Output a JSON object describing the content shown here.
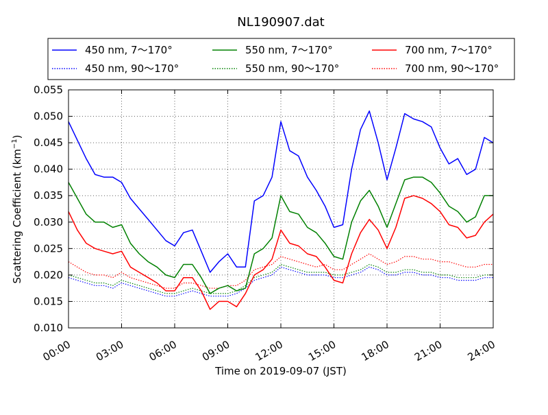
{
  "chart_data": {
    "type": "line",
    "title": "NL190907.dat",
    "xlabel": "Time on 2019-09-07 (JST)",
    "ylabel_main": "Scattering Coefficient (km",
    "ylabel_sup": "−1",
    "ylabel_close": ")",
    "xlim": [
      "00:00",
      "24:00"
    ],
    "ylim": [
      0.01,
      0.055
    ],
    "grid": true,
    "legend_position": "top",
    "x_ticks": [
      "00:00",
      "03:00",
      "06:00",
      "09:00",
      "12:00",
      "15:00",
      "18:00",
      "21:00",
      "24:00"
    ],
    "y_ticks": [
      "0.010",
      "0.015",
      "0.020",
      "0.025",
      "0.030",
      "0.035",
      "0.040",
      "0.045",
      "0.050",
      "0.055"
    ],
    "x_hours": [
      0,
      0.5,
      1,
      1.5,
      2,
      2.5,
      3,
      3.5,
      4,
      4.5,
      5,
      5.5,
      6,
      6.5,
      7,
      7.5,
      8,
      8.5,
      9,
      9.5,
      10,
      10.5,
      11,
      11.5,
      12,
      12.5,
      13,
      13.5,
      14,
      14.5,
      15,
      15.5,
      16,
      16.5,
      17,
      17.5,
      18,
      18.5,
      19,
      19.5,
      20,
      20.5,
      21,
      21.5,
      22,
      22.5,
      23,
      23.5,
      24
    ],
    "series": [
      {
        "name": "450 nm, 7～170°",
        "color": "#0000ff",
        "style": "solid",
        "values": [
          0.049,
          0.0455,
          0.042,
          0.039,
          0.0385,
          0.0385,
          0.0375,
          0.0345,
          0.0325,
          0.0305,
          0.0285,
          0.0265,
          0.0255,
          0.028,
          0.0285,
          0.0245,
          0.0205,
          0.0225,
          0.024,
          0.0215,
          0.0215,
          0.034,
          0.035,
          0.0385,
          0.049,
          0.0435,
          0.0425,
          0.0385,
          0.036,
          0.033,
          0.029,
          0.0295,
          0.04,
          0.0475,
          0.051,
          0.045,
          0.038,
          0.044,
          0.0505,
          0.0495,
          0.049,
          0.048,
          0.044,
          0.041,
          0.042,
          0.039,
          0.04,
          0.046,
          0.045
        ]
      },
      {
        "name": "550 nm, 7～170°",
        "color": "#008000",
        "style": "solid",
        "values": [
          0.0375,
          0.0345,
          0.0315,
          0.03,
          0.03,
          0.029,
          0.0295,
          0.026,
          0.024,
          0.0225,
          0.0215,
          0.02,
          0.0195,
          0.022,
          0.022,
          0.0195,
          0.0165,
          0.0175,
          0.018,
          0.017,
          0.0175,
          0.024,
          0.025,
          0.027,
          0.035,
          0.032,
          0.0315,
          0.029,
          0.028,
          0.026,
          0.0235,
          0.023,
          0.03,
          0.034,
          0.036,
          0.033,
          0.029,
          0.0335,
          0.038,
          0.0385,
          0.0385,
          0.0375,
          0.0355,
          0.033,
          0.032,
          0.03,
          0.031,
          0.035,
          0.035
        ]
      },
      {
        "name": "700 nm, 7～170°",
        "color": "#ff0000",
        "style": "solid",
        "values": [
          0.032,
          0.0285,
          0.026,
          0.025,
          0.0245,
          0.024,
          0.0245,
          0.0215,
          0.0205,
          0.0195,
          0.0185,
          0.017,
          0.017,
          0.0195,
          0.0195,
          0.017,
          0.0135,
          0.015,
          0.015,
          0.014,
          0.0165,
          0.02,
          0.021,
          0.023,
          0.0285,
          0.026,
          0.0255,
          0.024,
          0.0235,
          0.0215,
          0.019,
          0.0185,
          0.024,
          0.028,
          0.0305,
          0.0285,
          0.025,
          0.029,
          0.0345,
          0.035,
          0.0345,
          0.0335,
          0.032,
          0.0295,
          0.029,
          0.027,
          0.0275,
          0.03,
          0.0315
        ]
      },
      {
        "name": "450 nm, 90～170°",
        "color": "#0000ff",
        "style": "dotted",
        "values": [
          0.0195,
          0.019,
          0.0185,
          0.018,
          0.018,
          0.0175,
          0.0185,
          0.018,
          0.0175,
          0.017,
          0.0165,
          0.016,
          0.016,
          0.0165,
          0.017,
          0.0165,
          0.016,
          0.016,
          0.016,
          0.0165,
          0.0175,
          0.019,
          0.0195,
          0.02,
          0.0215,
          0.021,
          0.0205,
          0.02,
          0.02,
          0.02,
          0.0195,
          0.0195,
          0.02,
          0.0205,
          0.0215,
          0.021,
          0.02,
          0.02,
          0.0205,
          0.0205,
          0.02,
          0.02,
          0.0195,
          0.0195,
          0.019,
          0.019,
          0.019,
          0.0195,
          0.0195
        ]
      },
      {
        "name": "550 nm, 90～170°",
        "color": "#008000",
        "style": "dotted",
        "values": [
          0.02,
          0.0195,
          0.019,
          0.0185,
          0.0185,
          0.018,
          0.019,
          0.0185,
          0.018,
          0.0175,
          0.017,
          0.0165,
          0.0165,
          0.017,
          0.0175,
          0.017,
          0.0165,
          0.0165,
          0.0165,
          0.017,
          0.018,
          0.0195,
          0.02,
          0.0205,
          0.022,
          0.0215,
          0.021,
          0.0205,
          0.0205,
          0.0205,
          0.02,
          0.02,
          0.0205,
          0.021,
          0.022,
          0.0215,
          0.0205,
          0.0205,
          0.021,
          0.021,
          0.0205,
          0.0205,
          0.02,
          0.02,
          0.0195,
          0.0195,
          0.0195,
          0.02,
          0.02
        ]
      },
      {
        "name": "700 nm, 90～170°",
        "color": "#ff0000",
        "style": "dotted",
        "values": [
          0.0225,
          0.0215,
          0.0205,
          0.02,
          0.02,
          0.0195,
          0.0205,
          0.0195,
          0.019,
          0.0185,
          0.018,
          0.0175,
          0.0175,
          0.0185,
          0.0185,
          0.018,
          0.0175,
          0.0175,
          0.018,
          0.018,
          0.019,
          0.021,
          0.0215,
          0.022,
          0.0235,
          0.023,
          0.0225,
          0.022,
          0.0215,
          0.022,
          0.021,
          0.021,
          0.022,
          0.023,
          0.024,
          0.023,
          0.022,
          0.0225,
          0.0235,
          0.0235,
          0.023,
          0.023,
          0.0225,
          0.0225,
          0.022,
          0.0215,
          0.0215,
          0.022,
          0.022
        ]
      }
    ]
  }
}
